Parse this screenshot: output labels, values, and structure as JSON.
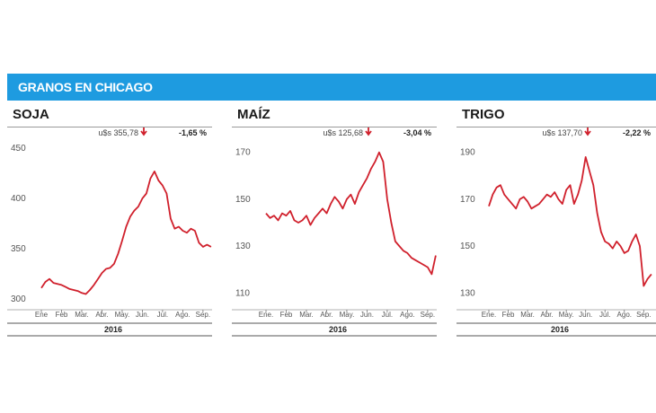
{
  "header": {
    "title": "GRANOS EN CHICAGO"
  },
  "colors": {
    "banner": "#1e9be0",
    "line": "#d0202c",
    "down_arrow": "#d0202c"
  },
  "chart_data": [
    {
      "type": "line",
      "title": "SOJA",
      "price": "u$s 355,78",
      "change": "-1,65 %",
      "direction": "down",
      "year_label": "2016",
      "months": [
        "Ene",
        "Feb",
        "Mar.",
        "Abr.",
        "May.",
        "Jun.",
        "Jul.",
        "Ago.",
        "Sep."
      ],
      "yticks": [
        300,
        350,
        400,
        450
      ],
      "ylim": [
        292,
        460
      ],
      "x": [
        0,
        0.2,
        0.4,
        0.6,
        0.8,
        1,
        1.2,
        1.4,
        1.6,
        1.8,
        2,
        2.2,
        2.4,
        2.6,
        2.8,
        3,
        3.2,
        3.4,
        3.6,
        3.8,
        4,
        4.2,
        4.4,
        4.6,
        4.8,
        5,
        5.2,
        5.4,
        5.6,
        5.8,
        6,
        6.2,
        6.4,
        6.6,
        6.8,
        7,
        7.2,
        7.4,
        7.6,
        7.8,
        8,
        8.2,
        8.4
      ],
      "values": [
        311,
        317,
        320,
        316,
        315,
        314,
        312,
        310,
        309,
        308,
        306,
        305,
        309,
        314,
        320,
        326,
        330,
        331,
        335,
        345,
        358,
        372,
        382,
        388,
        392,
        400,
        405,
        420,
        427,
        418,
        413,
        405,
        380,
        370,
        372,
        368,
        366,
        370,
        368,
        356,
        352,
        354,
        352
      ]
    },
    {
      "type": "line",
      "title": "MAÍZ",
      "price": "u$s 125,68",
      "change": "-3,04 %",
      "direction": "down",
      "year_label": "2016",
      "months": [
        "Ene.",
        "Feb",
        "Mar.",
        "Abr.",
        "May.",
        "Jun.",
        "Jul.",
        "Ago.",
        "Sep."
      ],
      "yticks": [
        110,
        130,
        150,
        170
      ],
      "ylim": [
        104,
        176
      ],
      "x": [
        0,
        0.2,
        0.4,
        0.6,
        0.8,
        1,
        1.2,
        1.4,
        1.6,
        1.8,
        2,
        2.2,
        2.4,
        2.6,
        2.8,
        3,
        3.2,
        3.4,
        3.6,
        3.8,
        4,
        4.2,
        4.4,
        4.6,
        4.8,
        5,
        5.2,
        5.4,
        5.6,
        5.8,
        6,
        6.2,
        6.4,
        6.6,
        6.8,
        7,
        7.2,
        7.4,
        7.6,
        7.8,
        8,
        8.2,
        8.4
      ],
      "values": [
        144,
        142,
        143,
        141,
        144,
        143,
        145,
        141,
        140,
        141,
        143,
        139,
        142,
        144,
        146,
        144,
        148,
        151,
        149,
        146,
        150,
        152,
        148,
        153,
        156,
        159,
        163,
        166,
        170,
        166,
        150,
        140,
        132,
        130,
        128,
        127,
        125,
        124,
        123,
        122,
        121,
        118,
        126
      ]
    },
    {
      "type": "line",
      "title": "TRIGO",
      "price": "u$s 137,70",
      "change": "-2,22 %",
      "direction": "down",
      "year_label": "2016",
      "months": [
        "Ene.",
        "Feb",
        "Mar.",
        "Abr.",
        "May.",
        "Jun.",
        "Jul.",
        "Ago.",
        "Sep."
      ],
      "yticks": [
        130,
        150,
        170,
        190
      ],
      "ylim": [
        124,
        196
      ],
      "x": [
        0,
        0.2,
        0.4,
        0.6,
        0.8,
        1,
        1.2,
        1.4,
        1.6,
        1.8,
        2,
        2.2,
        2.4,
        2.6,
        2.8,
        3,
        3.2,
        3.4,
        3.6,
        3.8,
        4,
        4.2,
        4.4,
        4.6,
        4.8,
        5,
        5.2,
        5.4,
        5.6,
        5.8,
        6,
        6.2,
        6.4,
        6.6,
        6.8,
        7,
        7.2,
        7.4,
        7.6,
        7.8,
        8,
        8.2,
        8.4
      ],
      "values": [
        167,
        172,
        175,
        176,
        172,
        170,
        168,
        166,
        170,
        171,
        169,
        166,
        167,
        168,
        170,
        172,
        171,
        173,
        170,
        168,
        174,
        176,
        168,
        172,
        178,
        188,
        182,
        176,
        164,
        156,
        152,
        151,
        149,
        152,
        150,
        147,
        148,
        152,
        155,
        150,
        133,
        136,
        138
      ]
    }
  ]
}
